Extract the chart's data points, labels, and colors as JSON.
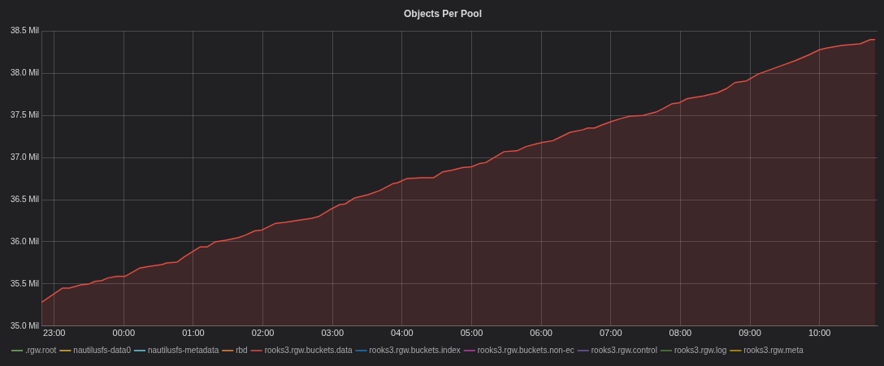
{
  "chart_data": {
    "type": "area",
    "title": "Objects Per Pool",
    "x": [
      "2000-01-01T22:49",
      "2000-01-01T23:07",
      "2000-01-01T23:13",
      "2000-01-01T23:23",
      "2000-01-01T23:30",
      "2000-01-01T23:35",
      "2000-01-01T23:41",
      "2000-01-01T23:46",
      "2000-01-01T23:54",
      "2000-01-02T00:01",
      "2000-01-02T00:14",
      "2000-01-02T00:23",
      "2000-01-02T00:33",
      "2000-01-02T00:37",
      "2000-01-02T00:46",
      "2000-01-02T00:52",
      "2000-01-02T01:06",
      "2000-01-02T01:12",
      "2000-01-02T01:19",
      "2000-01-02T01:28",
      "2000-01-02T01:39",
      "2000-01-02T01:45",
      "2000-01-02T01:53",
      "2000-01-02T01:59",
      "2000-01-02T02:11",
      "2000-01-02T02:19",
      "2000-01-02T02:28",
      "2000-01-02T02:42",
      "2000-01-02T02:48",
      "2000-01-02T02:59",
      "2000-01-02T03:06",
      "2000-01-02T03:11",
      "2000-01-02T03:19",
      "2000-01-02T03:31",
      "2000-01-02T03:41",
      "2000-01-02T03:52",
      "2000-01-02T03:56",
      "2000-01-02T04:04",
      "2000-01-02T04:16",
      "2000-01-02T04:27",
      "2000-01-02T04:35",
      "2000-01-02T04:43",
      "2000-01-02T04:52",
      "2000-01-02T05:00",
      "2000-01-02T05:07",
      "2000-01-02T05:12",
      "2000-01-02T05:28",
      "2000-01-02T05:39",
      "2000-01-02T05:47",
      "2000-01-02T05:55",
      "2000-01-02T06:01",
      "2000-01-02T06:10",
      "2000-01-02T06:16",
      "2000-01-02T06:25",
      "2000-01-02T06:36",
      "2000-01-02T06:40",
      "2000-01-02T06:46",
      "2000-01-02T06:51",
      "2000-01-02T07:01",
      "2000-01-02T07:08",
      "2000-01-02T07:16",
      "2000-01-02T07:28",
      "2000-01-02T07:33",
      "2000-01-02T07:39",
      "2000-01-02T07:45",
      "2000-01-02T07:53",
      "2000-01-02T07:59",
      "2000-01-02T08:06",
      "2000-01-02T08:20",
      "2000-01-02T08:32",
      "2000-01-02T08:40",
      "2000-01-02T08:47",
      "2000-01-02T08:57",
      "2000-01-02T09:07",
      "2000-01-02T09:17",
      "2000-01-02T09:31",
      "2000-01-02T09:39",
      "2000-01-02T09:51",
      "2000-01-02T10:00",
      "2000-01-02T10:06",
      "2000-01-02T10:19",
      "2000-01-02T10:35",
      "2000-01-02T10:44",
      "2000-01-02T10:48"
    ],
    "series": [
      {
        "name": ".rgw.root",
        "color": "#7eb26d",
        "values": [
          null,
          null,
          null,
          null,
          null,
          null,
          null,
          null,
          null,
          null,
          null,
          null,
          null,
          null,
          null,
          null,
          null,
          null,
          null,
          null,
          null,
          null,
          null,
          null,
          null,
          null,
          null,
          null,
          null,
          null,
          null,
          null,
          null,
          null,
          null,
          null,
          null,
          null,
          null,
          null,
          null,
          null,
          null,
          null,
          null,
          null,
          null,
          null,
          null,
          null,
          null,
          null,
          null,
          null,
          null,
          null,
          null,
          null,
          null,
          null,
          null,
          null,
          null,
          null,
          null,
          null,
          null,
          null,
          null,
          null,
          null,
          null,
          null,
          null,
          null,
          null,
          null,
          null,
          null,
          null,
          null,
          null,
          null,
          null
        ]
      },
      {
        "name": "nautilusfs-data0",
        "color": "#eab839",
        "values": [
          null,
          null,
          null,
          null,
          null,
          null,
          null,
          null,
          null,
          null,
          null,
          null,
          null,
          null,
          null,
          null,
          null,
          null,
          null,
          null,
          null,
          null,
          null,
          null,
          null,
          null,
          null,
          null,
          null,
          null,
          null,
          null,
          null,
          null,
          null,
          null,
          null,
          null,
          null,
          null,
          null,
          null,
          null,
          null,
          null,
          null,
          null,
          null,
          null,
          null,
          null,
          null,
          null,
          null,
          null,
          null,
          null,
          null,
          null,
          null,
          null,
          null,
          null,
          null,
          null,
          null,
          null,
          null,
          null,
          null,
          null,
          null,
          null,
          null,
          null,
          null,
          null,
          null,
          null,
          null,
          null,
          null,
          null,
          null
        ]
      },
      {
        "name": "nautilusfs-metadata",
        "color": "#6ed0e0",
        "values": [
          null,
          null,
          null,
          null,
          null,
          null,
          null,
          null,
          null,
          null,
          null,
          null,
          null,
          null,
          null,
          null,
          null,
          null,
          null,
          null,
          null,
          null,
          null,
          null,
          null,
          null,
          null,
          null,
          null,
          null,
          null,
          null,
          null,
          null,
          null,
          null,
          null,
          null,
          null,
          null,
          null,
          null,
          null,
          null,
          null,
          null,
          null,
          null,
          null,
          null,
          null,
          null,
          null,
          null,
          null,
          null,
          null,
          null,
          null,
          null,
          null,
          null,
          null,
          null,
          null,
          null,
          null,
          null,
          null,
          null,
          null,
          null,
          null,
          null,
          null,
          null,
          null,
          null,
          null,
          null,
          null,
          null,
          null,
          null
        ]
      },
      {
        "name": "rbd",
        "color": "#ef843c",
        "values": [
          null,
          null,
          null,
          null,
          null,
          null,
          null,
          null,
          null,
          null,
          null,
          null,
          null,
          null,
          null,
          null,
          null,
          null,
          null,
          null,
          null,
          null,
          null,
          null,
          null,
          null,
          null,
          null,
          null,
          null,
          null,
          null,
          null,
          null,
          null,
          null,
          null,
          null,
          null,
          null,
          null,
          null,
          null,
          null,
          null,
          null,
          null,
          null,
          null,
          null,
          null,
          null,
          null,
          null,
          null,
          null,
          null,
          null,
          null,
          null,
          null,
          null,
          null,
          null,
          null,
          null,
          null,
          null,
          null,
          null,
          null,
          null,
          null,
          null,
          null,
          null,
          null,
          null,
          null,
          null,
          null,
          null,
          null,
          null
        ]
      },
      {
        "name": "rooks3.rgw.buckets.data",
        "color": "#e24d42",
        "values": [
          35.28,
          35.45,
          35.45,
          35.49,
          35.5,
          35.53,
          35.54,
          35.57,
          35.59,
          35.59,
          35.69,
          35.71,
          35.73,
          35.75,
          35.76,
          35.82,
          35.94,
          35.94,
          36.0,
          36.02,
          36.05,
          36.08,
          36.13,
          36.14,
          36.22,
          36.23,
          36.25,
          36.28,
          36.3,
          36.39,
          36.44,
          36.45,
          36.52,
          36.56,
          36.61,
          36.69,
          36.7,
          36.75,
          36.76,
          36.76,
          36.83,
          36.85,
          36.88,
          36.89,
          36.93,
          36.94,
          37.07,
          37.08,
          37.13,
          37.16,
          37.18,
          37.2,
          37.24,
          37.3,
          37.33,
          37.35,
          37.35,
          37.38,
          37.43,
          37.46,
          37.49,
          37.5,
          37.52,
          37.54,
          37.58,
          37.64,
          37.65,
          37.7,
          37.73,
          37.77,
          37.82,
          37.89,
          37.91,
          37.99,
          38.04,
          38.11,
          38.15,
          38.22,
          38.28,
          38.3,
          38.33,
          38.35,
          38.4,
          38.4
        ]
      },
      {
        "name": "rooks3.rgw.buckets.index",
        "color": "#1f78c1",
        "values": [
          null,
          null,
          null,
          null,
          null,
          null,
          null,
          null,
          null,
          null,
          null,
          null,
          null,
          null,
          null,
          null,
          null,
          null,
          null,
          null,
          null,
          null,
          null,
          null,
          null,
          null,
          null,
          null,
          null,
          null,
          null,
          null,
          null,
          null,
          null,
          null,
          null,
          null,
          null,
          null,
          null,
          null,
          null,
          null,
          null,
          null,
          null,
          null,
          null,
          null,
          null,
          null,
          null,
          null,
          null,
          null,
          null,
          null,
          null,
          null,
          null,
          null,
          null,
          null,
          null,
          null,
          null,
          null,
          null,
          null,
          null,
          null,
          null,
          null,
          null,
          null,
          null,
          null,
          null,
          null,
          null,
          null,
          null,
          null
        ]
      },
      {
        "name": "rooks3.rgw.buckets.non-ec",
        "color": "#ba43a9",
        "values": [
          null,
          null,
          null,
          null,
          null,
          null,
          null,
          null,
          null,
          null,
          null,
          null,
          null,
          null,
          null,
          null,
          null,
          null,
          null,
          null,
          null,
          null,
          null,
          null,
          null,
          null,
          null,
          null,
          null,
          null,
          null,
          null,
          null,
          null,
          null,
          null,
          null,
          null,
          null,
          null,
          null,
          null,
          null,
          null,
          null,
          null,
          null,
          null,
          null,
          null,
          null,
          null,
          null,
          null,
          null,
          null,
          null,
          null,
          null,
          null,
          null,
          null,
          null,
          null,
          null,
          null,
          null,
          null,
          null,
          null,
          null,
          null,
          null,
          null,
          null,
          null,
          null,
          null,
          null,
          null,
          null,
          null,
          null,
          null
        ]
      },
      {
        "name": "rooks3.rgw.control",
        "color": "#705da0",
        "values": [
          null,
          null,
          null,
          null,
          null,
          null,
          null,
          null,
          null,
          null,
          null,
          null,
          null,
          null,
          null,
          null,
          null,
          null,
          null,
          null,
          null,
          null,
          null,
          null,
          null,
          null,
          null,
          null,
          null,
          null,
          null,
          null,
          null,
          null,
          null,
          null,
          null,
          null,
          null,
          null,
          null,
          null,
          null,
          null,
          null,
          null,
          null,
          null,
          null,
          null,
          null,
          null,
          null,
          null,
          null,
          null,
          null,
          null,
          null,
          null,
          null,
          null,
          null,
          null,
          null,
          null,
          null,
          null,
          null,
          null,
          null,
          null,
          null,
          null,
          null,
          null,
          null,
          null,
          null,
          null,
          null,
          null,
          null,
          null
        ]
      },
      {
        "name": "rooks3.rgw.log",
        "color": "#508642",
        "values": [
          null,
          null,
          null,
          null,
          null,
          null,
          null,
          null,
          null,
          null,
          null,
          null,
          null,
          null,
          null,
          null,
          null,
          null,
          null,
          null,
          null,
          null,
          null,
          null,
          null,
          null,
          null,
          null,
          null,
          null,
          null,
          null,
          null,
          null,
          null,
          null,
          null,
          null,
          null,
          null,
          null,
          null,
          null,
          null,
          null,
          null,
          null,
          null,
          null,
          null,
          null,
          null,
          null,
          null,
          null,
          null,
          null,
          null,
          null,
          null,
          null,
          null,
          null,
          null,
          null,
          null,
          null,
          null,
          null,
          null,
          null,
          null,
          null,
          null,
          null,
          null,
          null,
          null,
          null,
          null,
          null,
          null,
          null,
          null
        ]
      },
      {
        "name": "rooks3.rgw.meta",
        "color": "#cca300",
        "values": [
          null,
          null,
          null,
          null,
          null,
          null,
          null,
          null,
          null,
          null,
          null,
          null,
          null,
          null,
          null,
          null,
          null,
          null,
          null,
          null,
          null,
          null,
          null,
          null,
          null,
          null,
          null,
          null,
          null,
          null,
          null,
          null,
          null,
          null,
          null,
          null,
          null,
          null,
          null,
          null,
          null,
          null,
          null,
          null,
          null,
          null,
          null,
          null,
          null,
          null,
          null,
          null,
          null,
          null,
          null,
          null,
          null,
          null,
          null,
          null,
          null,
          null,
          null,
          null,
          null,
          null,
          null,
          null,
          null,
          null,
          null,
          null,
          null,
          null,
          null,
          null,
          null,
          null,
          null,
          null,
          null,
          null,
          null,
          null
        ]
      }
    ],
    "xlim": [
      "2000-01-01T22:49",
      "2000-01-02T10:50"
    ],
    "xticks": [
      {
        "value": "2000-01-01T23:00",
        "label": "23:00"
      },
      {
        "value": "2000-01-02T00:00",
        "label": "00:00"
      },
      {
        "value": "2000-01-02T01:00",
        "label": "01:00"
      },
      {
        "value": "2000-01-02T02:00",
        "label": "02:00"
      },
      {
        "value": "2000-01-02T03:00",
        "label": "03:00"
      },
      {
        "value": "2000-01-02T04:00",
        "label": "04:00"
      },
      {
        "value": "2000-01-02T05:00",
        "label": "05:00"
      },
      {
        "value": "2000-01-02T06:00",
        "label": "06:00"
      },
      {
        "value": "2000-01-02T07:00",
        "label": "07:00"
      },
      {
        "value": "2000-01-02T08:00",
        "label": "08:00"
      },
      {
        "value": "2000-01-02T09:00",
        "label": "09:00"
      },
      {
        "value": "2000-01-02T10:00",
        "label": "10:00"
      }
    ],
    "ylim": [
      35,
      38.5
    ],
    "yticks": [
      {
        "value": 35,
        "label": "35.0 Mil"
      },
      {
        "value": 35.5,
        "label": "35.5 Mil"
      },
      {
        "value": 36,
        "label": "36.0 Mil"
      },
      {
        "value": 36.5,
        "label": "36.5 Mil"
      },
      {
        "value": 37,
        "label": "37.0 Mil"
      },
      {
        "value": 37.5,
        "label": "37.5 Mil"
      },
      {
        "value": 38,
        "label": "38.0 Mil"
      },
      {
        "value": 38.5,
        "label": "38.5 Mil"
      }
    ],
    "grid": true,
    "legend": "bottom",
    "marker": "none",
    "line_style": "solid"
  }
}
